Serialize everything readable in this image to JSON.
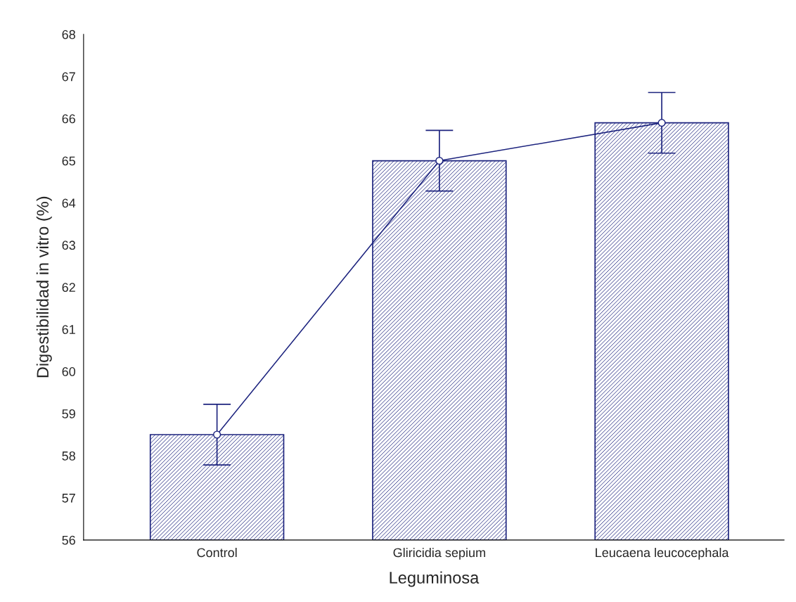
{
  "chart_data": {
    "type": "bar",
    "xlabel": "Leguminosa",
    "ylabel": "Digestibilidad in vitro (%)",
    "categories": [
      "Control",
      "Gliricidia sepium",
      "Leucaena leucocephala"
    ],
    "series": [
      {
        "color": "#1c237e",
        "values": [
          58.5,
          65.0,
          65.9
        ],
        "errors": [
          0.72,
          0.72,
          0.72
        ]
      },
      {
        "type": "line",
        "color": "#1c237e",
        "values": [
          58.5,
          65.0,
          65.9
        ],
        "marker": "circle",
        "line_style": "solid"
      }
    ],
    "ylim": [
      56,
      68
    ],
    "yticks": [
      56,
      57,
      58,
      59,
      60,
      61,
      62,
      63,
      64,
      65,
      66,
      67,
      68
    ],
    "grid": false,
    "legend": false
  }
}
